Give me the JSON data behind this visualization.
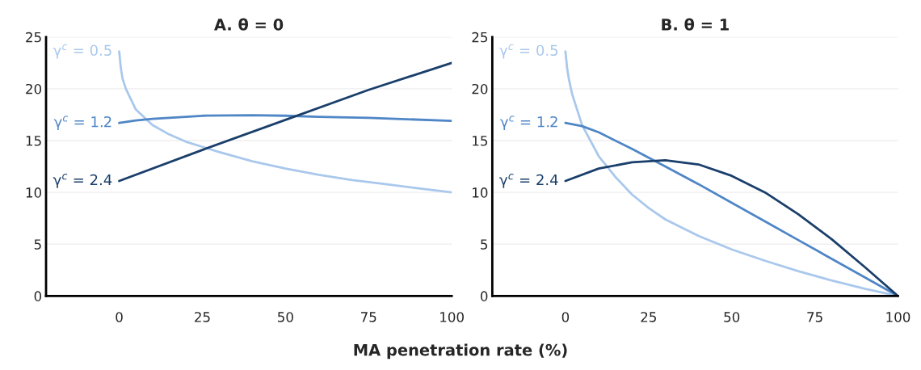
{
  "chart_data": [
    {
      "type": "line",
      "title": "A. θ = 0",
      "xlabel": "MA penetration rate (%)",
      "xlim": [
        -22,
        100
      ],
      "xticks": [
        0,
        25,
        50,
        75,
        100
      ],
      "ylim": [
        0,
        25
      ],
      "yticks": [
        0,
        5,
        10,
        15,
        20,
        25
      ],
      "grid": "y",
      "legend": false,
      "marker": "none",
      "line_style": "solid",
      "series": [
        {
          "name": "γ$^{c}$ = 0.5",
          "color": "#a9c8ec",
          "x": [
            0,
            0.5,
            1,
            2,
            5,
            10,
            15,
            20,
            25,
            30,
            40,
            50,
            60,
            70,
            80,
            90,
            100
          ],
          "values": [
            23.6,
            22,
            21,
            20,
            18,
            16.5,
            15.6,
            14.9,
            14.4,
            13.9,
            13,
            12.3,
            11.7,
            11.2,
            10.8,
            10.4,
            10.0
          ]
        },
        {
          "name": "γ$^{c}$ = 1.2",
          "color": "#4f86c6",
          "x": [
            0,
            5,
            10,
            25,
            40,
            50,
            60,
            75,
            100
          ],
          "values": [
            16.7,
            16.95,
            17.1,
            17.4,
            17.45,
            17.4,
            17.3,
            17.2,
            16.9
          ]
        },
        {
          "name": "γ$^{c}$ = 2.4",
          "color": "#1a3f6b",
          "x": [
            0,
            25,
            50,
            75,
            100
          ],
          "values": [
            11.1,
            14.1,
            17.0,
            19.9,
            22.5
          ]
        }
      ]
    },
    {
      "type": "line",
      "title": "B. θ = 1",
      "xlim": [
        -22,
        100
      ],
      "xticks": [
        0,
        25,
        50,
        75,
        100
      ],
      "ylim": [
        0,
        25
      ],
      "yticks": [
        0,
        5,
        10,
        15,
        20,
        25
      ],
      "grid": "y",
      "legend": false,
      "marker": "none",
      "line_style": "solid",
      "series": [
        {
          "name": "γ$^{c}$ = 0.5",
          "color": "#a9c8ec",
          "x": [
            0,
            0.5,
            1,
            2,
            5,
            10,
            15,
            20,
            25,
            30,
            40,
            50,
            60,
            70,
            80,
            90,
            100
          ],
          "values": [
            23.6,
            22,
            21,
            19.5,
            16.5,
            13.5,
            11.5,
            9.8,
            8.5,
            7.4,
            5.8,
            4.5,
            3.4,
            2.4,
            1.5,
            0.7,
            0
          ]
        },
        {
          "name": "γ$^{c}$ = 1.2",
          "color": "#4f86c6",
          "x": [
            0,
            5,
            10,
            20,
            30,
            40,
            50,
            60,
            70,
            80,
            90,
            100
          ],
          "values": [
            16.7,
            16.4,
            15.8,
            14.2,
            12.5,
            10.8,
            9.0,
            7.2,
            5.4,
            3.6,
            1.8,
            0
          ]
        },
        {
          "name": "γ$^{c}$ = 2.4",
          "color": "#1a3f6b",
          "x": [
            0,
            10,
            20,
            30,
            40,
            50,
            60,
            70,
            80,
            90,
            100
          ],
          "values": [
            11.1,
            12.3,
            12.9,
            13.1,
            12.7,
            11.6,
            10.0,
            7.9,
            5.5,
            2.8,
            0
          ]
        }
      ]
    }
  ]
}
